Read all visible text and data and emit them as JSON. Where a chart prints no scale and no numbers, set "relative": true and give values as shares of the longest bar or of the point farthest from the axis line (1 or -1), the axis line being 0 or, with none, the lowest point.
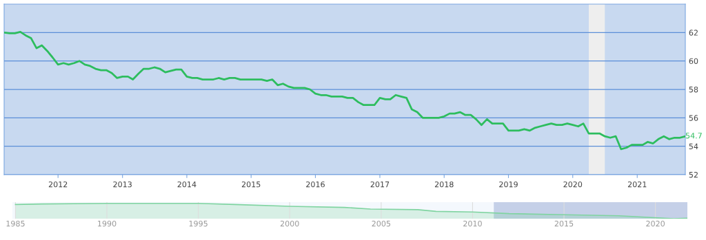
{
  "chart_data": [
    {
      "type": "line",
      "x": [
        "2011-03",
        "2011-04",
        "2011-05",
        "2011-06",
        "2011-07",
        "2011-08",
        "2011-09",
        "2011-10",
        "2011-11",
        "2011-12",
        "2012-01",
        "2012-02",
        "2012-03",
        "2012-04",
        "2012-05",
        "2012-06",
        "2012-07",
        "2012-08",
        "2012-09",
        "2012-10",
        "2012-11",
        "2012-12",
        "2013-01",
        "2013-02",
        "2013-03",
        "2013-04",
        "2013-05",
        "2013-06",
        "2013-07",
        "2013-08",
        "2013-09",
        "2013-10",
        "2013-11",
        "2013-12",
        "2014-01",
        "2014-02",
        "2014-03",
        "2014-04",
        "2014-05",
        "2014-06",
        "2014-07",
        "2014-08",
        "2014-09",
        "2014-10",
        "2014-11",
        "2014-12",
        "2015-01",
        "2015-02",
        "2015-03",
        "2015-04",
        "2015-05",
        "2015-06",
        "2015-07",
        "2015-08",
        "2015-09",
        "2015-10",
        "2015-11",
        "2015-12",
        "2016-01",
        "2016-02",
        "2016-03",
        "2016-04",
        "2016-05",
        "2016-06",
        "2016-07",
        "2016-08",
        "2016-09",
        "2016-10",
        "2016-11",
        "2016-12",
        "2017-01",
        "2017-02",
        "2017-03",
        "2017-04",
        "2017-05",
        "2017-06",
        "2017-07",
        "2017-08",
        "2017-09",
        "2017-10",
        "2017-11",
        "2017-12",
        "2018-01",
        "2018-02",
        "2018-03",
        "2018-04",
        "2018-05",
        "2018-06",
        "2018-07",
        "2018-08",
        "2018-09",
        "2018-10",
        "2018-11",
        "2018-12",
        "2019-01",
        "2019-02",
        "2019-03",
        "2019-04",
        "2019-05",
        "2019-06",
        "2019-07",
        "2019-08",
        "2019-09",
        "2019-10",
        "2019-11",
        "2019-12",
        "2020-01",
        "2020-02",
        "2020-03",
        "2020-04",
        "2020-05",
        "2020-06",
        "2020-07",
        "2020-08",
        "2020-09",
        "2020-10",
        "2020-11",
        "2020-12",
        "2021-01",
        "2021-02",
        "2021-03",
        "2021-04",
        "2021-05",
        "2021-06",
        "2021-07",
        "2021-08",
        "2021-09",
        "2021-10"
      ],
      "series": [
        {
          "color": "#2dbd5e",
          "values": [
            62.0,
            61.95,
            61.95,
            62.05,
            61.8,
            61.6,
            60.9,
            61.1,
            60.7,
            60.25,
            59.75,
            59.85,
            59.75,
            59.85,
            60.0,
            59.75,
            59.65,
            59.45,
            59.35,
            59.35,
            59.15,
            58.8,
            58.9,
            58.9,
            58.7,
            59.1,
            59.45,
            59.45,
            59.55,
            59.45,
            59.2,
            59.3,
            59.4,
            59.4,
            58.9,
            58.8,
            58.8,
            58.7,
            58.7,
            58.7,
            58.8,
            58.7,
            58.8,
            58.8,
            58.7,
            58.7,
            58.7,
            58.7,
            58.7,
            58.6,
            58.7,
            58.3,
            58.4,
            58.2,
            58.1,
            58.1,
            58.1,
            58.0,
            57.7,
            57.6,
            57.6,
            57.5,
            57.5,
            57.5,
            57.4,
            57.4,
            57.1,
            56.9,
            56.9,
            56.9,
            57.4,
            57.3,
            57.3,
            57.6,
            57.5,
            57.4,
            56.6,
            56.4,
            56.0,
            56.0,
            56.0,
            56.0,
            56.1,
            56.3,
            56.3,
            56.4,
            56.2,
            56.2,
            55.9,
            55.5,
            55.9,
            55.6,
            55.6,
            55.6,
            55.1,
            55.1,
            55.1,
            55.2,
            55.1,
            55.3,
            55.4,
            55.5,
            55.6,
            55.5,
            55.5,
            55.6,
            55.5,
            55.4,
            55.6,
            54.9,
            54.9,
            54.9,
            54.7,
            54.6,
            54.7,
            53.8,
            53.9,
            54.1,
            54.1,
            54.1,
            54.3,
            54.2,
            54.5,
            54.7,
            54.5,
            54.6,
            54.6,
            54.7
          ],
          "value_labels": [
            null,
            null,
            null,
            null,
            null,
            null,
            null,
            null,
            null,
            null,
            null,
            null,
            null,
            null,
            null,
            null,
            null,
            null,
            null,
            null,
            null,
            null,
            null,
            null,
            null,
            null,
            null,
            null,
            null,
            null,
            null,
            null,
            null,
            null,
            null,
            null,
            null,
            null,
            null,
            null,
            null,
            null,
            null,
            null,
            null,
            null,
            null,
            null,
            null,
            null,
            null,
            null,
            null,
            null,
            null,
            null,
            null,
            null,
            null,
            null,
            null,
            null,
            null,
            null,
            null,
            null,
            null,
            null,
            null,
            null,
            null,
            null,
            null,
            null,
            null,
            null,
            null,
            null,
            null,
            null,
            null,
            null,
            null,
            null,
            null,
            null,
            null,
            null,
            null,
            null,
            null,
            null,
            null,
            null,
            null,
            null,
            null,
            null,
            null,
            null,
            null,
            null,
            null,
            null,
            null,
            null,
            null,
            null,
            null,
            null,
            null,
            null,
            null,
            null,
            null,
            null,
            null,
            null,
            null,
            null,
            null,
            null,
            null,
            null,
            null,
            null,
            null,
            "54.7"
          ]
        }
      ],
      "xlim": [
        "2011-03",
        "2021-10"
      ],
      "xticks": [
        {
          "value": "2012",
          "label": "2012"
        },
        {
          "value": "2013",
          "label": "2013"
        },
        {
          "value": "2014",
          "label": "2014"
        },
        {
          "value": "2015",
          "label": "2015"
        },
        {
          "value": "2016",
          "label": "2016"
        },
        {
          "value": "2017",
          "label": "2017"
        },
        {
          "value": "2018",
          "label": "2018"
        },
        {
          "value": "2019",
          "label": "2019"
        },
        {
          "value": "2020",
          "label": "2020"
        },
        {
          "value": "2021",
          "label": "2021"
        }
      ],
      "ylim": [
        52,
        64
      ],
      "yticks": [
        52,
        54,
        56,
        58,
        60,
        62
      ],
      "grid": "y",
      "legend": false,
      "marker": "none",
      "line_style": "solid",
      "bands": [
        {
          "axis": "x",
          "from": "2020-04",
          "to": "2020-07",
          "color": "#eeeeee"
        }
      ]
    },
    {
      "type": "area",
      "relative": true,
      "x": [
        "1985-01",
        "1986-06",
        "1990-01",
        "1995-01",
        "1997-01",
        "2000-01",
        "2003-01",
        "2004-06",
        "2007-01",
        "2008-01",
        "2010-01",
        "2012-01",
        "2015-01",
        "2018-01",
        "2021-01",
        "2021-10"
      ],
      "series": [
        {
          "color": "#7fd4a0",
          "values": [
            0.93,
            0.96,
            1.0,
            1.0,
            0.93,
            0.81,
            0.74,
            0.63,
            0.59,
            0.48,
            0.44,
            0.33,
            0.26,
            0.19,
            0.0,
            0.03
          ]
        }
      ],
      "xlim": [
        "1984-11",
        "2021-10"
      ],
      "xticks": [
        {
          "value": "1985",
          "label": "1985"
        },
        {
          "value": "1990",
          "label": "1990"
        },
        {
          "value": "1995",
          "label": "1995"
        },
        {
          "value": "2000",
          "label": "2000"
        },
        {
          "value": "2005",
          "label": "2005"
        },
        {
          "value": "2010",
          "label": "2010"
        },
        {
          "value": "2015",
          "label": "2015"
        },
        {
          "value": "2020",
          "label": "2020"
        }
      ],
      "grid": "x",
      "bands": [
        {
          "axis": "x",
          "from": "2011-03",
          "to": "2021-10",
          "color": "#c5d0e8"
        }
      ]
    }
  ]
}
